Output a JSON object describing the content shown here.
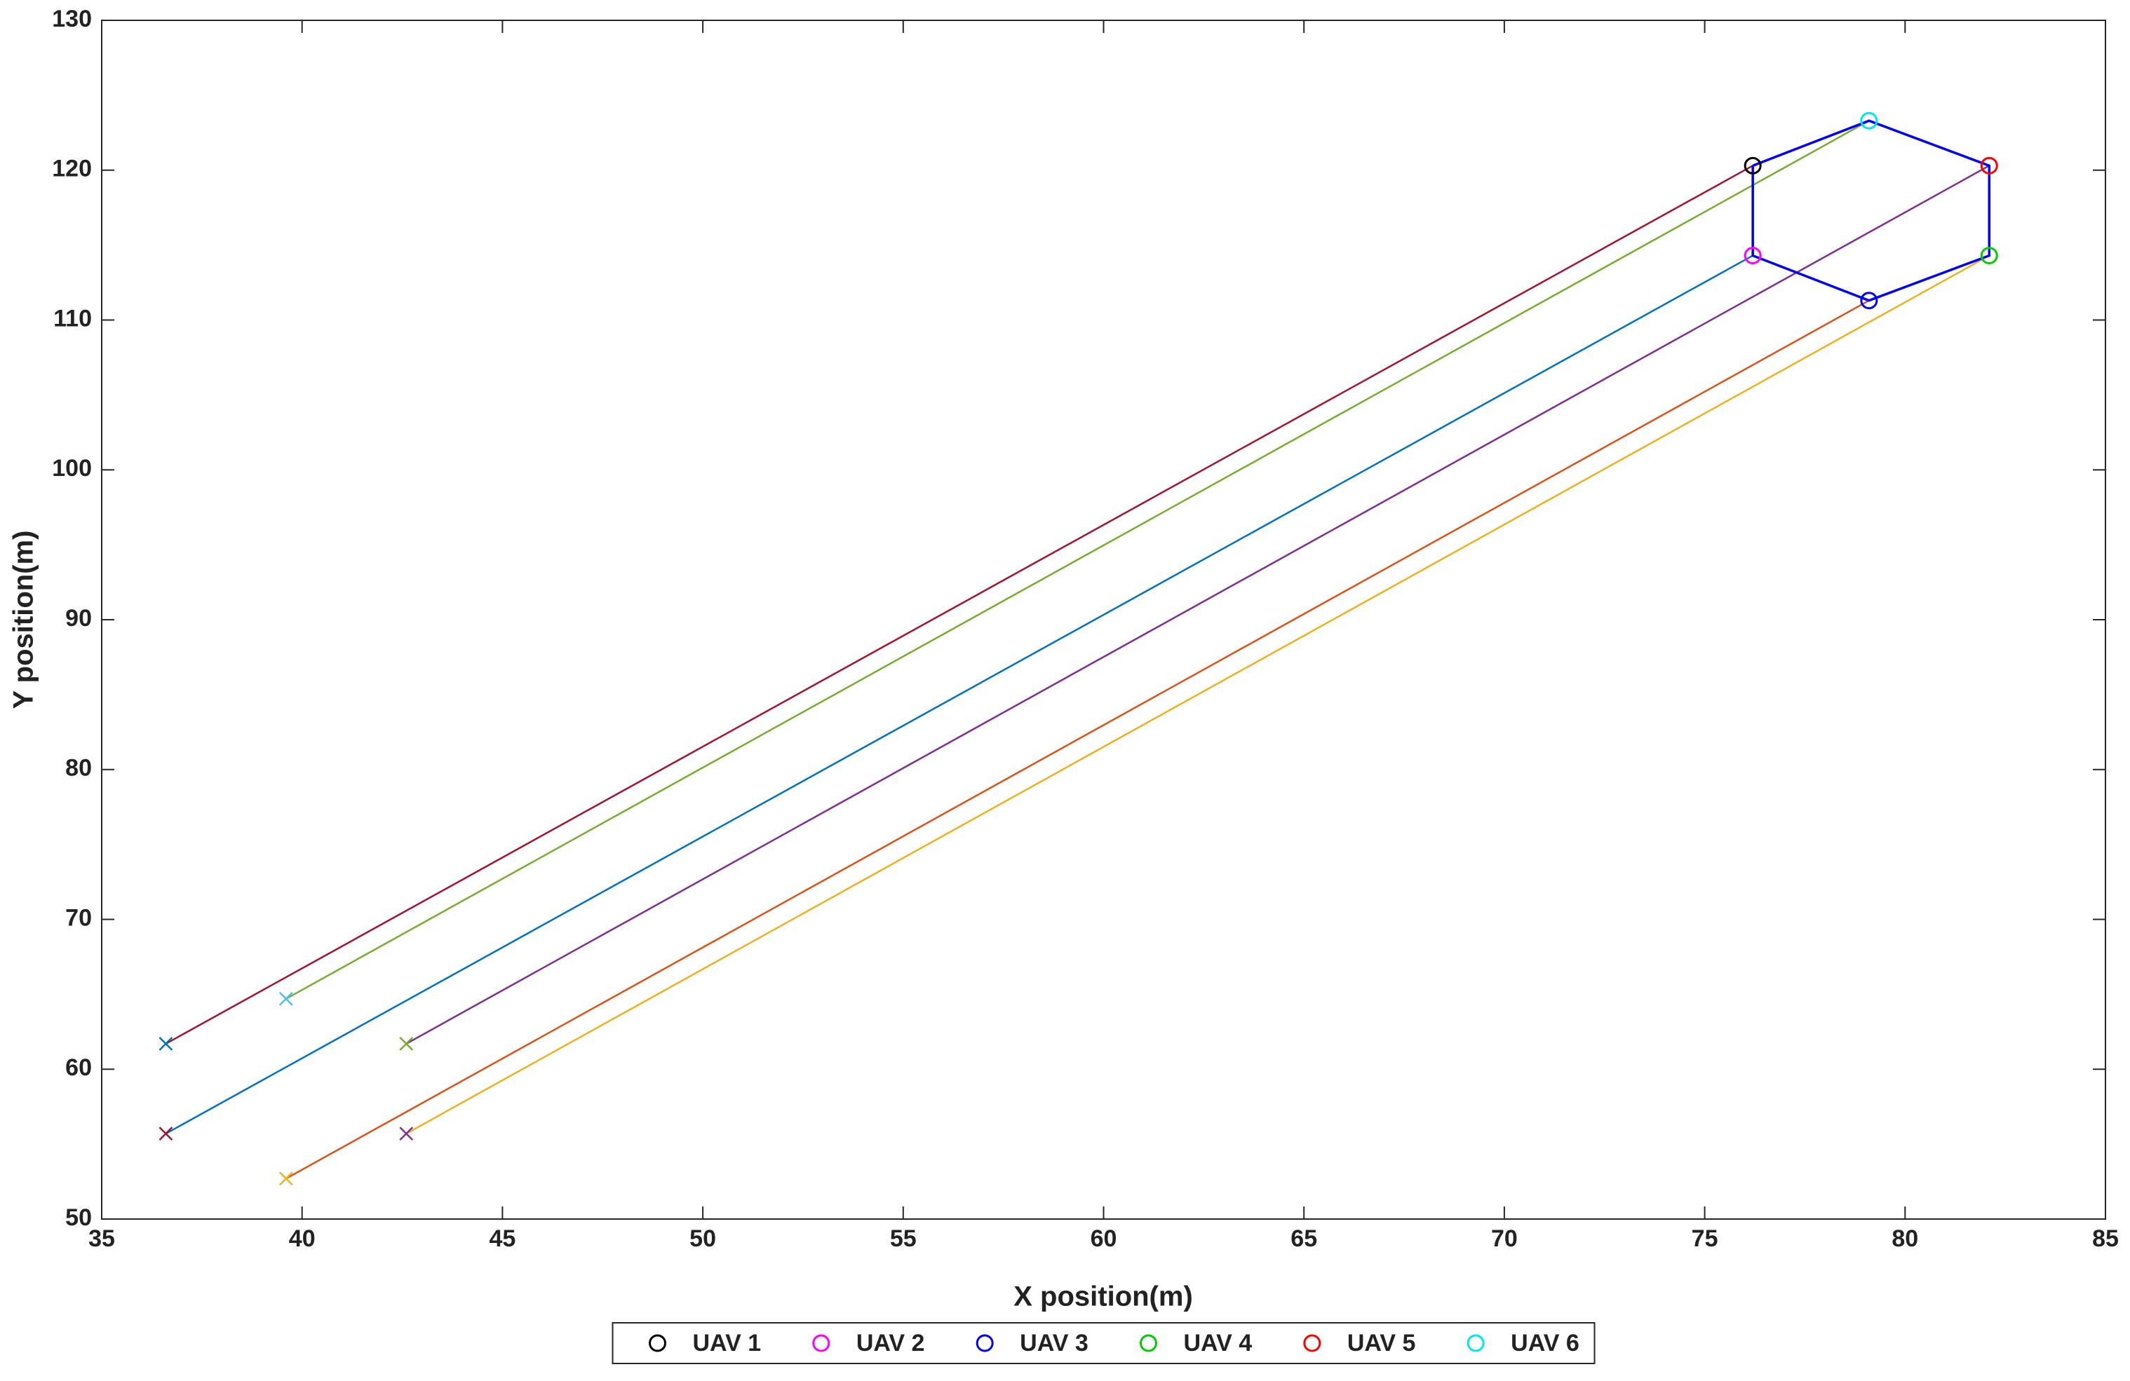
{
  "chart_data": {
    "type": "line",
    "xlabel": "X position(m)",
    "ylabel": "Y position(m)",
    "xlim": [
      35,
      85
    ],
    "xticks": [
      35,
      40,
      45,
      50,
      55,
      60,
      65,
      70,
      75,
      80,
      85
    ],
    "ylim": [
      50,
      130
    ],
    "yticks": [
      50,
      60,
      70,
      80,
      90,
      100,
      110,
      120,
      130
    ],
    "grid": false,
    "legend": "bottom",
    "trajectories": [
      {
        "color": "#a2142f",
        "marker_color": "#0072bd",
        "x": [
          36.6,
          76.2
        ],
        "values": [
          61.7,
          120.3
        ]
      },
      {
        "color": "#77ac30",
        "marker_color": "#4dbeee",
        "x": [
          39.6,
          79.1
        ],
        "values": [
          64.7,
          123.3
        ]
      },
      {
        "color": "#0072bd",
        "marker_color": "#a2142f",
        "x": [
          36.6,
          76.2
        ],
        "values": [
          55.7,
          114.3
        ]
      },
      {
        "color": "#7e2f8e",
        "marker_color": "#77ac30",
        "x": [
          42.6,
          82.1
        ],
        "values": [
          61.7,
          120.3
        ]
      },
      {
        "color": "#d95319",
        "marker_color": "#edb120",
        "x": [
          39.6,
          79.1
        ],
        "values": [
          52.7,
          111.3
        ]
      },
      {
        "color": "#edb120",
        "marker_color": "#7e2f8e",
        "x": [
          42.6,
          82.1
        ],
        "values": [
          55.7,
          114.3
        ]
      }
    ],
    "formation": {
      "color": "#0000ff",
      "x": [
        76.2,
        79.1,
        82.1,
        82.1,
        79.1,
        76.2,
        76.2
      ],
      "values": [
        120.3,
        123.3,
        120.3,
        114.3,
        111.3,
        114.3,
        120.3
      ]
    },
    "series": [
      {
        "name": "UAV 1",
        "color": "#000000",
        "x": [
          76.2
        ],
        "values": [
          120.3
        ]
      },
      {
        "name": "UAV 2",
        "color": "#ff00ff",
        "x": [
          76.2
        ],
        "values": [
          114.3
        ]
      },
      {
        "name": "UAV 3",
        "color": "#0000ff",
        "x": [
          79.1
        ],
        "values": [
          111.3
        ]
      },
      {
        "name": "UAV 4",
        "color": "#00cc00",
        "x": [
          82.1
        ],
        "values": [
          114.3
        ]
      },
      {
        "name": "UAV 5",
        "color": "#ff0000",
        "x": [
          82.1
        ],
        "values": [
          120.3
        ]
      },
      {
        "name": "UAV 6",
        "color": "#00e5ee",
        "x": [
          79.1
        ],
        "values": [
          123.3
        ]
      }
    ]
  }
}
